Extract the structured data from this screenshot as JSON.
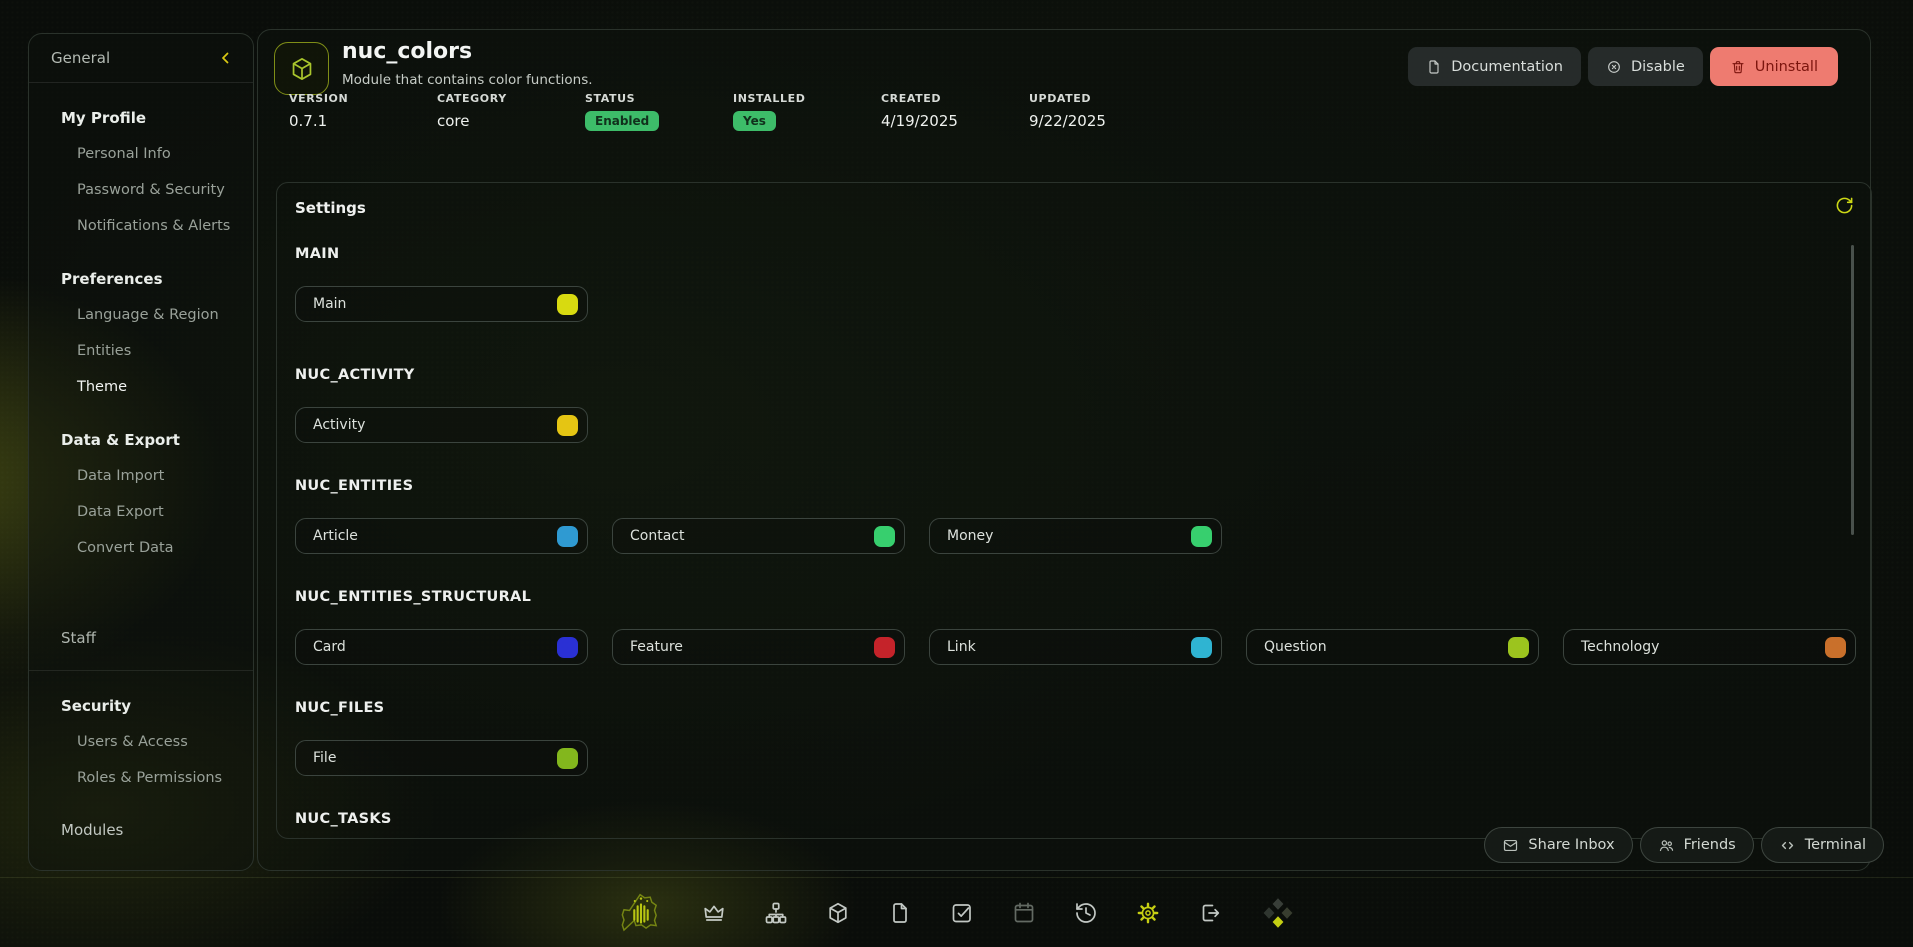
{
  "theme": {
    "accent_yellow": "#d8e414",
    "badge_green": "#3dbc69",
    "danger_bg": "#ee7b70",
    "danger_text": "#7c150e"
  },
  "sidebar": {
    "top_label": "General",
    "collapse_icon": "chevron-left-icon",
    "groups": [
      {
        "title": "My Profile",
        "items": [
          "Personal Info",
          "Password & Security",
          "Notifications & Alerts"
        ]
      },
      {
        "title": "Preferences",
        "items": [
          "Language & Region",
          "Entities",
          "Theme"
        ]
      },
      {
        "title": "Data & Export",
        "items": [
          "Data Import",
          "Data Export",
          "Convert Data"
        ]
      }
    ],
    "active_item": "Theme",
    "staff_label": "Staff",
    "lower_groups": [
      {
        "title": "Security",
        "items": [
          "Users & Access",
          "Roles & Permissions"
        ]
      }
    ],
    "modules_label": "Modules"
  },
  "module_header": {
    "title": "nuc_colors",
    "description": "Module that contains color functions.",
    "icon": "package-icon",
    "buttons": [
      {
        "label": "Documentation",
        "icon": "document",
        "variant": "default"
      },
      {
        "label": "Disable",
        "icon": "circle-x",
        "variant": "default"
      },
      {
        "label": "Uninstall",
        "icon": "trash",
        "variant": "danger"
      }
    ],
    "meta": [
      {
        "label": "VERSION",
        "value": "0.7.1",
        "type": "text"
      },
      {
        "label": "CATEGORY",
        "value": "core",
        "type": "text"
      },
      {
        "label": "STATUS",
        "value": "Enabled",
        "type": "badge"
      },
      {
        "label": "INSTALLED",
        "value": "Yes",
        "type": "badge"
      },
      {
        "label": "CREATED",
        "value": "4/19/2025",
        "type": "text"
      },
      {
        "label": "UPDATED",
        "value": "9/22/2025",
        "type": "text"
      }
    ]
  },
  "settings": {
    "title": "Settings",
    "refresh_icon": "refresh-icon",
    "groups": [
      {
        "name": "MAIN",
        "items": [
          {
            "label": "Main",
            "color": "#d8da10"
          }
        ]
      },
      {
        "name": "NUC_ACTIVITY",
        "items": [
          {
            "label": "Activity",
            "color": "#e5c513"
          }
        ]
      },
      {
        "name": "NUC_ENTITIES",
        "items": [
          {
            "label": "Article",
            "color": "#2f9ad2"
          },
          {
            "label": "Contact",
            "color": "#37cf6e"
          },
          {
            "label": "Money",
            "color": "#37cf6e"
          }
        ]
      },
      {
        "name": "NUC_ENTITIES_STRUCTURAL",
        "items": [
          {
            "label": "Card",
            "color": "#2a30d4"
          },
          {
            "label": "Feature",
            "color": "#c5232a"
          },
          {
            "label": "Link",
            "color": "#2fb4d2"
          },
          {
            "label": "Question",
            "color": "#9cc41e"
          },
          {
            "label": "Technology",
            "color": "#c9702b"
          }
        ]
      },
      {
        "name": "NUC_FILES",
        "items": [
          {
            "label": "File",
            "color": "#83b71d"
          }
        ]
      },
      {
        "name": "NUC_TASKS",
        "items": []
      }
    ]
  },
  "footer_buttons": [
    {
      "label": "Share Inbox",
      "icon": "inbox"
    },
    {
      "label": "Friends",
      "icon": "friends"
    },
    {
      "label": "Terminal",
      "icon": "terminal"
    }
  ],
  "dock": {
    "icons": [
      {
        "name": "logo",
        "style": "logo"
      },
      {
        "name": "crown",
        "style": "default"
      },
      {
        "name": "sitemap",
        "style": "default"
      },
      {
        "name": "package",
        "style": "default"
      },
      {
        "name": "file",
        "style": "default"
      },
      {
        "name": "check-square",
        "style": "default"
      },
      {
        "name": "calendar",
        "style": "dim"
      },
      {
        "name": "history",
        "style": "default"
      },
      {
        "name": "gear",
        "style": "accent"
      },
      {
        "name": "logout",
        "style": "default"
      },
      {
        "name": "diamonds",
        "style": "multi"
      }
    ]
  }
}
